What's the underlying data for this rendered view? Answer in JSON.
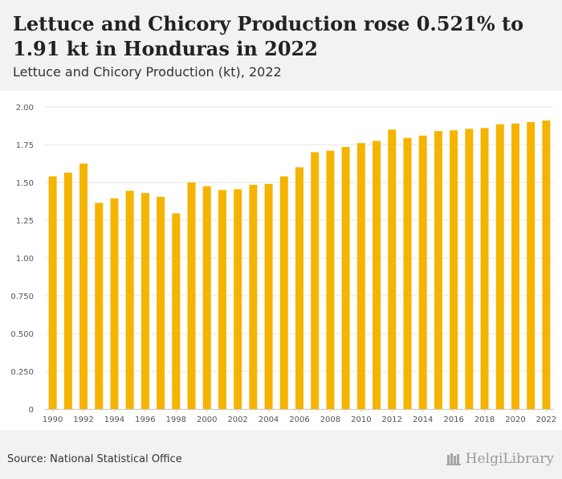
{
  "header": {
    "title": "Lettuce and Chicory Production rose 0.521% to 1.91 kt in Honduras in 2022",
    "subtitle": "Lettuce and Chicory Production (kt), 2022"
  },
  "footer": {
    "source": "Source: National Statistical Office",
    "logo_text": "HelgiLibrary"
  },
  "colors": {
    "bar": "#f5b400",
    "grid": "#e6e6e6",
    "header_bg": "#f2f2f2",
    "axis_text": "#555555"
  },
  "chart_data": {
    "type": "bar",
    "title": "Lettuce and Chicory Production rose 0.521% to 1.91 kt in Honduras in 2022",
    "subtitle": "Lettuce and Chicory Production (kt), 2022",
    "xlabel": "",
    "ylabel": "",
    "ylim": [
      0,
      2.0
    ],
    "yticks": [
      "0",
      "0.250",
      "0.500",
      "0.750",
      "1.00",
      "1.25",
      "1.50",
      "1.75",
      "2.00"
    ],
    "categories": [
      "1990",
      "1991",
      "1992",
      "1993",
      "1994",
      "1995",
      "1996",
      "1997",
      "1998",
      "1999",
      "2000",
      "2001",
      "2002",
      "2003",
      "2004",
      "2005",
      "2006",
      "2007",
      "2008",
      "2009",
      "2010",
      "2011",
      "2012",
      "2013",
      "2014",
      "2015",
      "2016",
      "2017",
      "2018",
      "2019",
      "2020",
      "2021",
      "2022"
    ],
    "xtick_labels": [
      "1990",
      "1992",
      "1994",
      "1996",
      "1998",
      "2000",
      "2002",
      "2004",
      "2006",
      "2008",
      "2010",
      "2012",
      "2014",
      "2016",
      "2018",
      "2020",
      "2022"
    ],
    "values": [
      1.54,
      1.565,
      1.625,
      1.365,
      1.395,
      1.445,
      1.43,
      1.405,
      1.295,
      1.5,
      1.475,
      1.45,
      1.455,
      1.485,
      1.49,
      1.54,
      1.6,
      1.7,
      1.71,
      1.735,
      1.76,
      1.775,
      1.85,
      1.795,
      1.81,
      1.84,
      1.845,
      1.855,
      1.86,
      1.885,
      1.89,
      1.9,
      1.91
    ],
    "grid": true
  }
}
